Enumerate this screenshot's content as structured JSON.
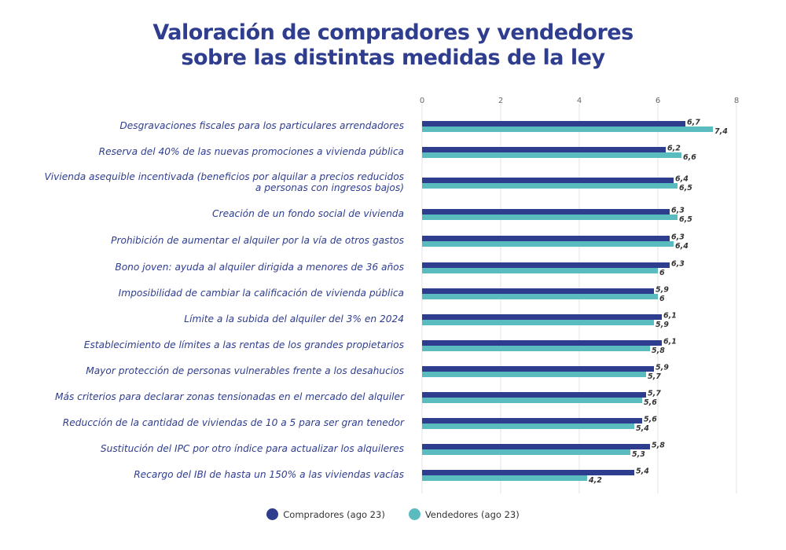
{
  "chart_data": {
    "type": "bar",
    "orientation": "horizontal",
    "title": [
      "Valoración de compradores y vendedores",
      "sobre las distintas medidas de la ley"
    ],
    "categories": [
      [
        "Desgravaciones fiscales para los particulares arrendadores"
      ],
      [
        "Reserva del 40% de las nuevas promociones a vivienda pública"
      ],
      [
        "Vivienda asequible incentivada (beneficios por alquilar a precios reducidos",
        "a personas con ingresos bajos)"
      ],
      [
        "Creación de un fondo social de vivienda"
      ],
      [
        "Prohibición de aumentar el alquiler por la vía de otros gastos"
      ],
      [
        "Bono joven: ayuda al alquiler dirigida a menores de 36 años"
      ],
      [
        "Imposibilidad de cambiar la calificación de vivienda pública"
      ],
      [
        "Límite a la subida del alquiler del 3% en 2024"
      ],
      [
        "Establecimiento de límites a las rentas de los grandes propietarios"
      ],
      [
        "Mayor protección de personas vulnerables frente a los desahucios"
      ],
      [
        "Más criterios para declarar zonas tensionadas en el mercado del alquiler"
      ],
      [
        "Reducción de la cantidad de viviendas de 10 a 5 para ser gran tenedor"
      ],
      [
        "Sustitución del IPC por otro índice para actualizar los alquileres"
      ],
      [
        "Recargo del IBI de hasta un 150% a las viviendas vacías"
      ]
    ],
    "series": [
      {
        "name": "Compradores (ago 23)",
        "color": "#2f3d8f",
        "values": [
          6.7,
          6.2,
          6.4,
          6.3,
          6.3,
          6.3,
          5.9,
          6.1,
          6.1,
          5.9,
          5.7,
          5.6,
          5.8,
          5.4
        ],
        "labels": [
          "6,7",
          "6,2",
          "6,4",
          "6,3",
          "6,3",
          "6,3",
          "5,9",
          "6,1",
          "6,1",
          "5,9",
          "5,7",
          "5,6",
          "5,8",
          "5,4"
        ]
      },
      {
        "name": "Vendedores (ago 23)",
        "color": "#5bbcbf",
        "values": [
          7.4,
          6.6,
          6.5,
          6.5,
          6.4,
          6,
          6,
          5.9,
          5.8,
          5.7,
          5.6,
          5.4,
          5.3,
          4.2
        ],
        "labels": [
          "7,4",
          "6,6",
          "6,5",
          "6,5",
          "6,4",
          "6",
          "6",
          "5,9",
          "5,8",
          "5,7",
          "5,6",
          "5,4",
          "5,3",
          "4,2"
        ]
      }
    ],
    "xlim": [
      0,
      8
    ],
    "xticks": [
      "0",
      "2",
      "4",
      "6",
      "8"
    ],
    "grid": true,
    "legend": "bottom"
  }
}
